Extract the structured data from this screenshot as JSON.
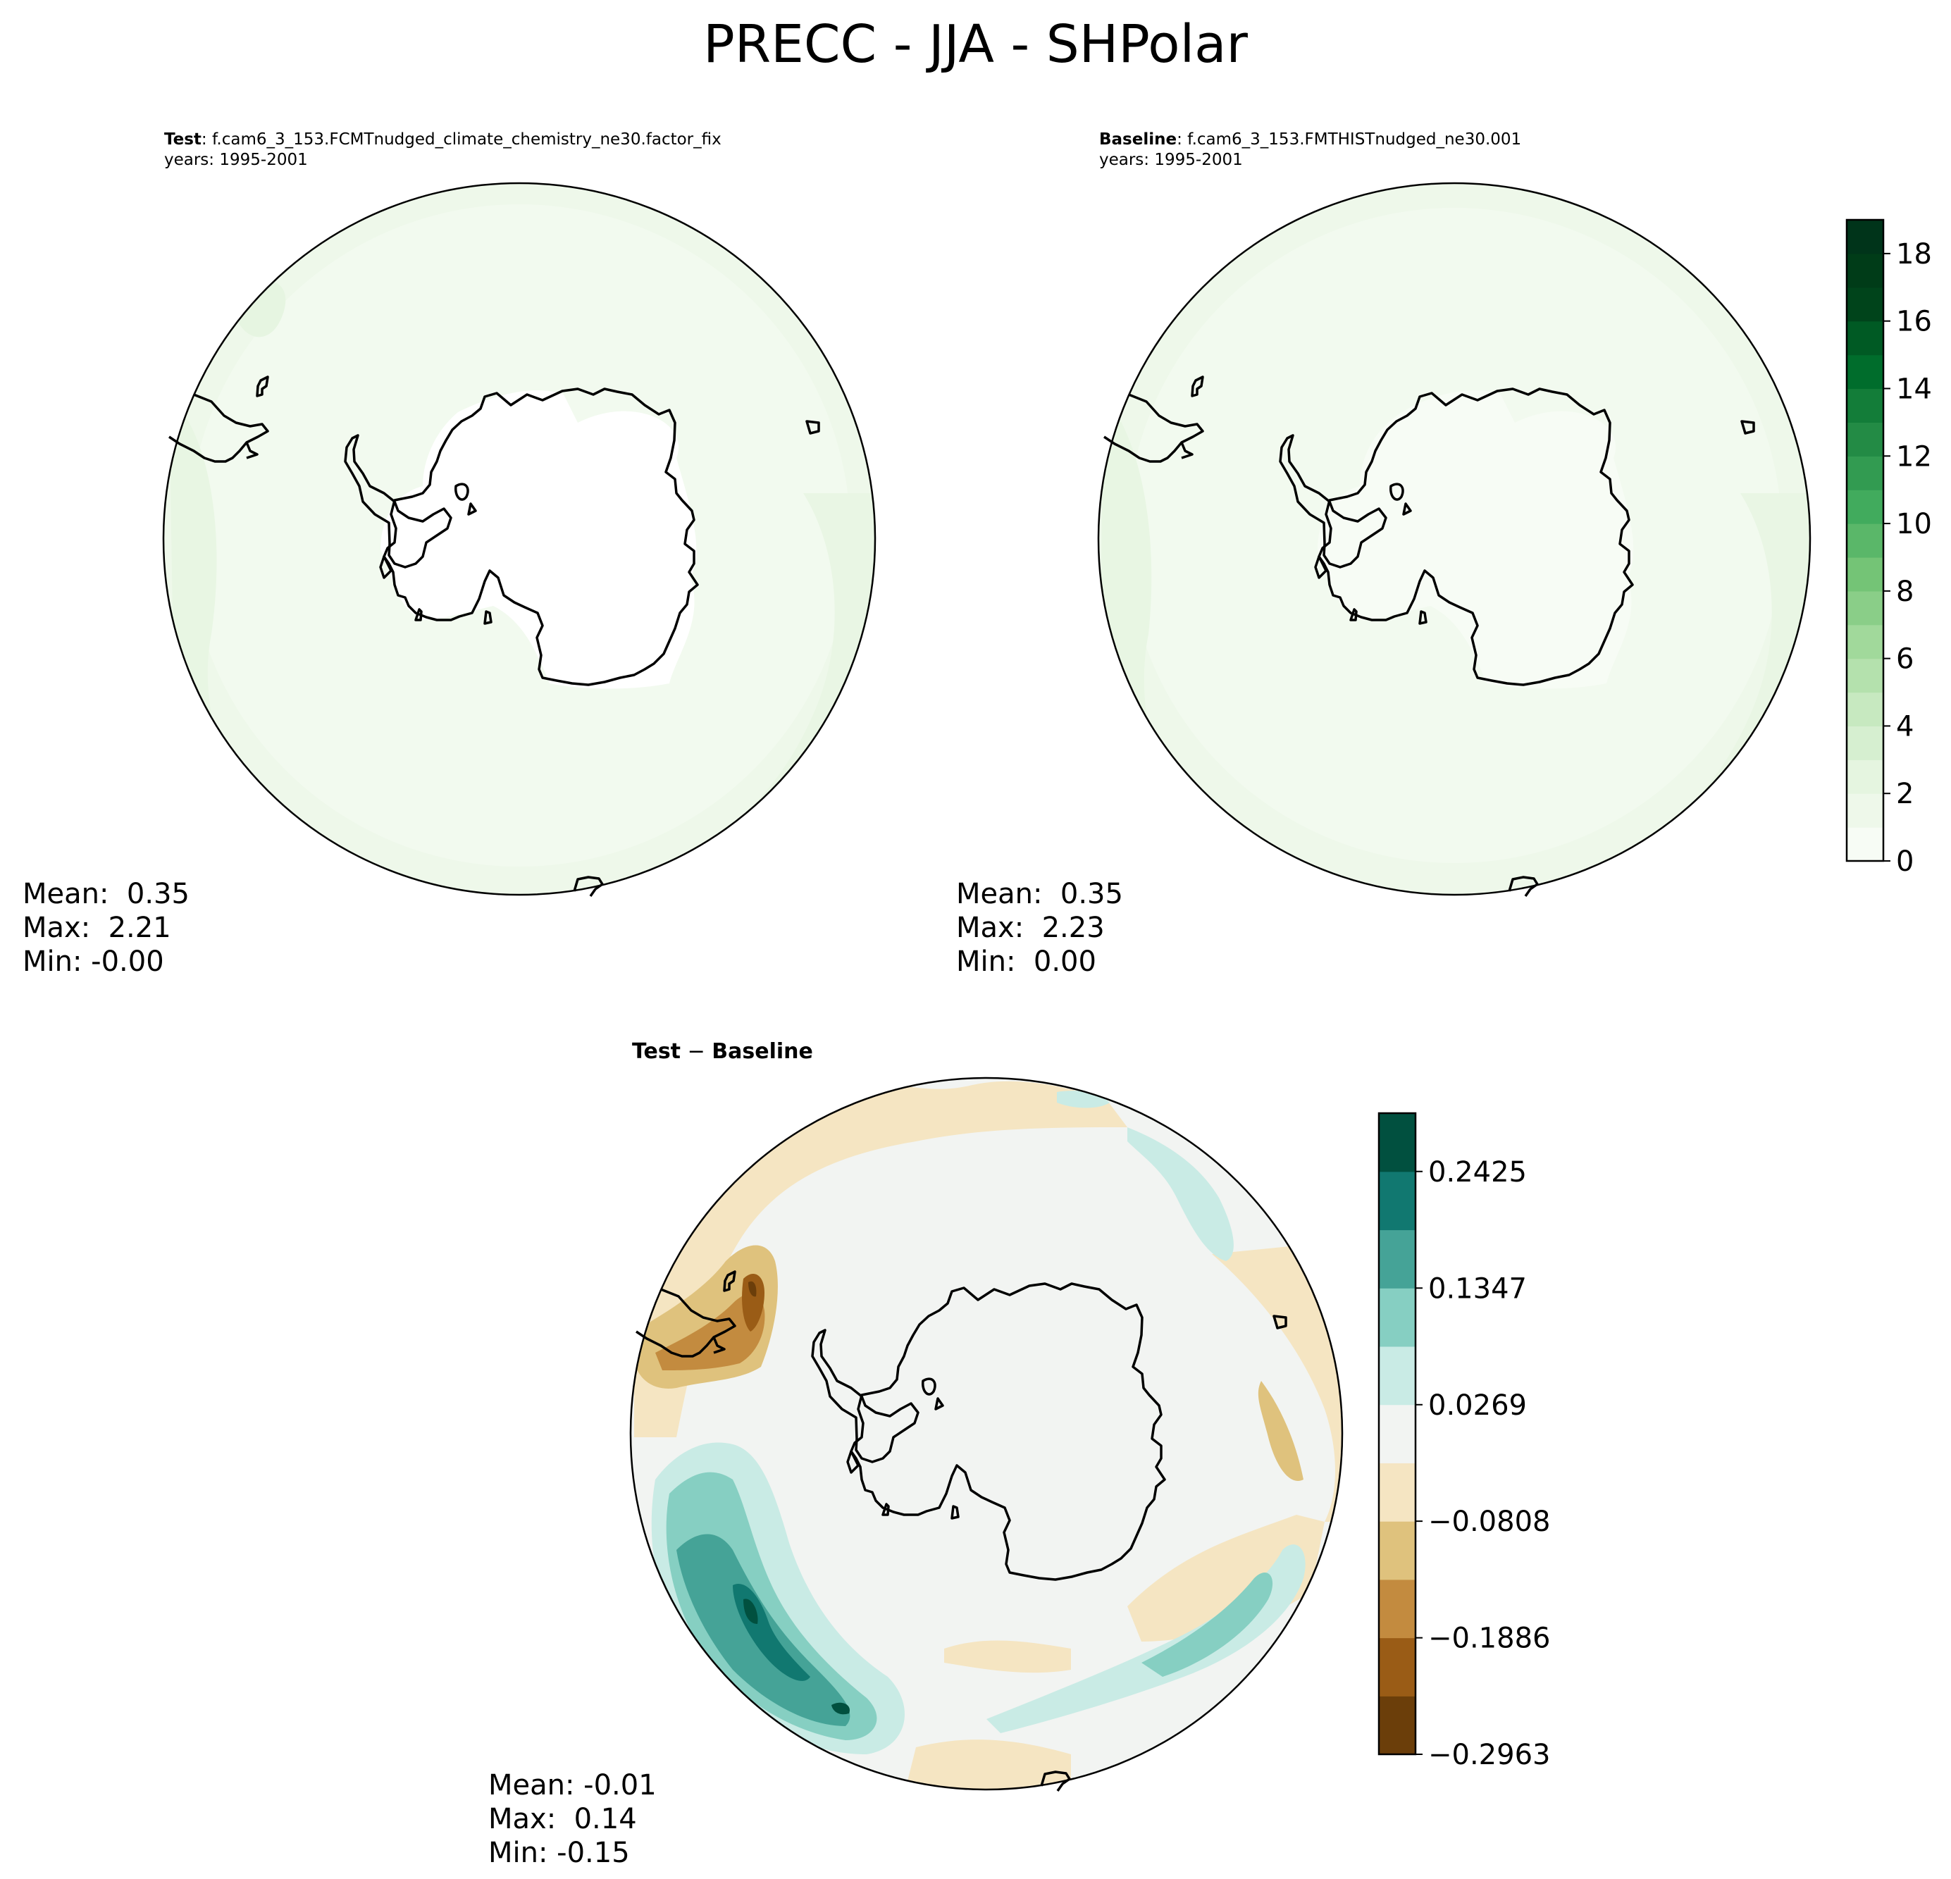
{
  "figure": {
    "title": "PRECC - JJA - SHPolar"
  },
  "panels": {
    "test": {
      "label": "Test",
      "case": ": f.cam6_3_153.FCMTnudged_climate_chemistry_ne30.factor_fix",
      "years": "years: 1995-2001",
      "stats": {
        "mean": "Mean:  0.35",
        "max": "Max:  2.21",
        "min": "Min: -0.00"
      }
    },
    "baseline": {
      "label": "Baseline",
      "case": ": f.cam6_3_153.FMTHISTnudged_ne30.001",
      "years": "years: 1995-2001",
      "stats": {
        "mean": "Mean:  0.35",
        "max": "Max:  2.23",
        "min": "Min:  0.00"
      }
    },
    "difference": {
      "title_left": "Test",
      "title_sep": " − ",
      "title_right": "Baseline",
      "stats": {
        "mean": "Mean: -0.01",
        "max": "Max:  0.14",
        "min": "Min: -0.15"
      }
    }
  },
  "colorbars": {
    "main": {
      "ticks": [
        "0",
        "2",
        "4",
        "6",
        "8",
        "10",
        "12",
        "14",
        "16",
        "18"
      ],
      "range": [
        0,
        19
      ],
      "colors": [
        "#f7fcf5",
        "#eef8ea",
        "#e5f5e0",
        "#d6efd0",
        "#c7e9c0",
        "#b4e1ad",
        "#a1d99b",
        "#8ace88",
        "#74c476",
        "#5ab769",
        "#41ab5d",
        "#329b51",
        "#238b45",
        "#137d39",
        "#006d2c",
        "#005a24",
        "#00441b",
        "#003c18",
        "#00341a"
      ]
    },
    "diff": {
      "ticks": [
        "0.2425",
        "0.1347",
        "0.0269",
        "−0.0808",
        "−0.1886",
        "−0.2963"
      ],
      "range": [
        -0.2963,
        0.2964
      ],
      "colors": [
        "#6b3e0a",
        "#9a5c16",
        "#c38b3f",
        "#dfc27d",
        "#f5e5c2",
        "#f2f4f2",
        "#c9ebe5",
        "#86cfc2",
        "#45a397",
        "#117870",
        "#01503f"
      ]
    }
  }
}
